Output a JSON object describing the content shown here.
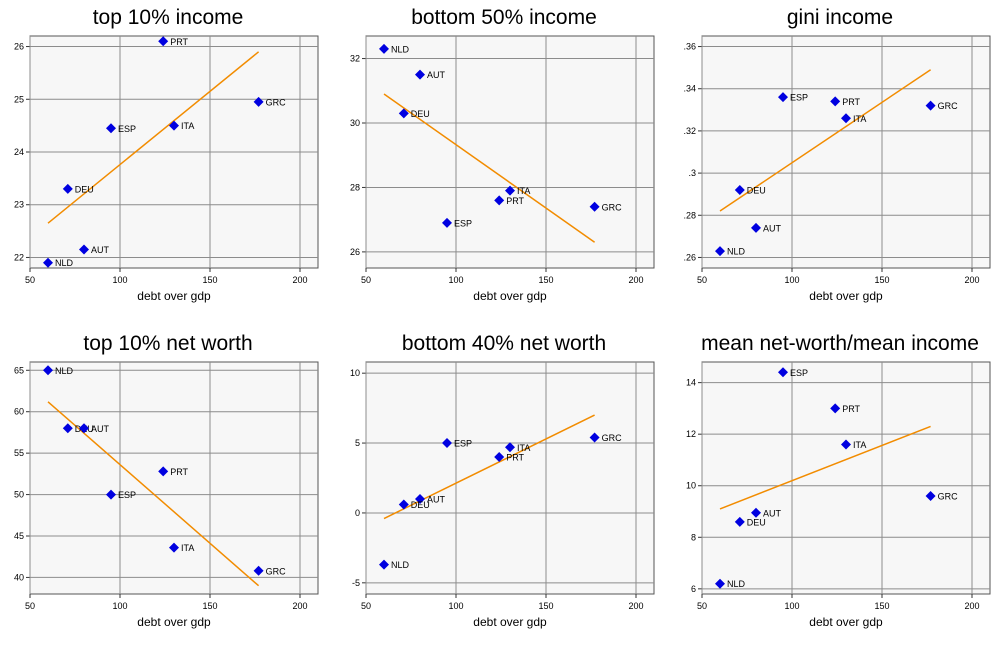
{
  "colors": {
    "marker": "#0000e0",
    "fit_line": "#f28c00",
    "plot_bg": "#f7f7f7",
    "grid": "#8c8c8c"
  },
  "chart_data": [
    {
      "type": "scatter",
      "title": "top 10% income",
      "xlabel": "debt over gdp",
      "ylabel": "",
      "xlim": [
        50,
        210
      ],
      "ylim": [
        21.8,
        26.2
      ],
      "xticks": [
        "50",
        "100",
        "150",
        "200"
      ],
      "yticks": [
        "22",
        "23",
        "24",
        "25",
        "26"
      ],
      "grid": true,
      "points": [
        {
          "label": "NLD",
          "x": 60,
          "y": 21.9
        },
        {
          "label": "AUT",
          "x": 80,
          "y": 22.15
        },
        {
          "label": "DEU",
          "x": 71,
          "y": 23.3
        },
        {
          "label": "ESP",
          "x": 95,
          "y": 24.45
        },
        {
          "label": "ITA",
          "x": 130,
          "y": 24.5
        },
        {
          "label": "PRT",
          "x": 124,
          "y": 26.1
        },
        {
          "label": "GRC",
          "x": 177,
          "y": 24.95
        }
      ],
      "fit_line": {
        "x": [
          60,
          177
        ],
        "y": [
          22.65,
          25.9
        ]
      }
    },
    {
      "type": "scatter",
      "title": "bottom 50% income",
      "xlabel": "debt over gdp",
      "ylabel": "",
      "xlim": [
        50,
        210
      ],
      "ylim": [
        25.5,
        32.7
      ],
      "xticks": [
        "50",
        "100",
        "150",
        "200"
      ],
      "yticks": [
        "26",
        "28",
        "30",
        "32"
      ],
      "grid": true,
      "points": [
        {
          "label": "NLD",
          "x": 60,
          "y": 32.3
        },
        {
          "label": "AUT",
          "x": 80,
          "y": 31.5
        },
        {
          "label": "DEU",
          "x": 71,
          "y": 30.3
        },
        {
          "label": "ITA",
          "x": 130,
          "y": 27.9
        },
        {
          "label": "PRT",
          "x": 124,
          "y": 27.6
        },
        {
          "label": "GRC",
          "x": 177,
          "y": 27.4
        },
        {
          "label": "ESP",
          "x": 95,
          "y": 26.9
        }
      ],
      "fit_line": {
        "x": [
          60,
          177
        ],
        "y": [
          30.9,
          26.3
        ]
      }
    },
    {
      "type": "scatter",
      "title": "gini income",
      "xlabel": "debt over gdp",
      "ylabel": "",
      "xlim": [
        50,
        210
      ],
      "ylim": [
        0.255,
        0.365
      ],
      "xticks": [
        "50",
        "100",
        "150",
        "200"
      ],
      "yticks": [
        ".26",
        ".28",
        ".3",
        ".32",
        ".34",
        ".36"
      ],
      "grid": true,
      "points": [
        {
          "label": "ESP",
          "x": 95,
          "y": 0.336
        },
        {
          "label": "PRT",
          "x": 124,
          "y": 0.334
        },
        {
          "label": "ITA",
          "x": 130,
          "y": 0.326
        },
        {
          "label": "GRC",
          "x": 177,
          "y": 0.332
        },
        {
          "label": "DEU",
          "x": 71,
          "y": 0.292
        },
        {
          "label": "AUT",
          "x": 80,
          "y": 0.274
        },
        {
          "label": "NLD",
          "x": 60,
          "y": 0.263
        }
      ],
      "fit_line": {
        "x": [
          60,
          177
        ],
        "y": [
          0.282,
          0.349
        ]
      }
    },
    {
      "type": "scatter",
      "title": "top 10% net worth",
      "xlabel": "debt over gdp",
      "ylabel": "",
      "xlim": [
        50,
        210
      ],
      "ylim": [
        38,
        66
      ],
      "xticks": [
        "50",
        "100",
        "150",
        "200"
      ],
      "yticks": [
        "40",
        "45",
        "50",
        "55",
        "60",
        "65"
      ],
      "grid": true,
      "points": [
        {
          "label": "NLD",
          "x": 60,
          "y": 65
        },
        {
          "label": "DEU",
          "x": 71,
          "y": 58
        },
        {
          "label": "AUT",
          "x": 80,
          "y": 58
        },
        {
          "label": "PRT",
          "x": 124,
          "y": 52.8
        },
        {
          "label": "ESP",
          "x": 95,
          "y": 50
        },
        {
          "label": "ITA",
          "x": 130,
          "y": 43.6
        },
        {
          "label": "GRC",
          "x": 177,
          "y": 40.8
        }
      ],
      "fit_line": {
        "x": [
          60,
          177
        ],
        "y": [
          61.2,
          39
        ]
      }
    },
    {
      "type": "scatter",
      "title": "bottom 40% net worth",
      "xlabel": "debt over gdp",
      "ylabel": "",
      "xlim": [
        50,
        210
      ],
      "ylim": [
        -5.8,
        10.8
      ],
      "xticks": [
        "50",
        "100",
        "150",
        "200"
      ],
      "yticks": [
        "-5",
        "0",
        "5",
        "10"
      ],
      "grid": true,
      "points": [
        {
          "label": "ESP",
          "x": 95,
          "y": 5
        },
        {
          "label": "ITA",
          "x": 130,
          "y": 4.7
        },
        {
          "label": "PRT",
          "x": 124,
          "y": 4
        },
        {
          "label": "GRC",
          "x": 177,
          "y": 5.4
        },
        {
          "label": "AUT",
          "x": 80,
          "y": 1
        },
        {
          "label": "DEU",
          "x": 71,
          "y": 0.6
        },
        {
          "label": "NLD",
          "x": 60,
          "y": -3.7
        }
      ],
      "fit_line": {
        "x": [
          60,
          177
        ],
        "y": [
          -0.4,
          7
        ]
      }
    },
    {
      "type": "scatter",
      "title": "mean net-worth/mean income",
      "xlabel": "debt over gdp",
      "ylabel": "",
      "xlim": [
        50,
        210
      ],
      "ylim": [
        5.8,
        14.8
      ],
      "xticks": [
        "50",
        "100",
        "150",
        "200"
      ],
      "yticks": [
        "6",
        "8",
        "10",
        "12",
        "14"
      ],
      "grid": true,
      "points": [
        {
          "label": "ESP",
          "x": 95,
          "y": 14.4
        },
        {
          "label": "PRT",
          "x": 124,
          "y": 13
        },
        {
          "label": "ITA",
          "x": 130,
          "y": 11.6
        },
        {
          "label": "GRC",
          "x": 177,
          "y": 9.6
        },
        {
          "label": "AUT",
          "x": 80,
          "y": 8.95
        },
        {
          "label": "DEU",
          "x": 71,
          "y": 8.6
        },
        {
          "label": "NLD",
          "x": 60,
          "y": 6.2
        }
      ],
      "fit_line": {
        "x": [
          60,
          177
        ],
        "y": [
          9.1,
          12.3
        ]
      }
    }
  ]
}
